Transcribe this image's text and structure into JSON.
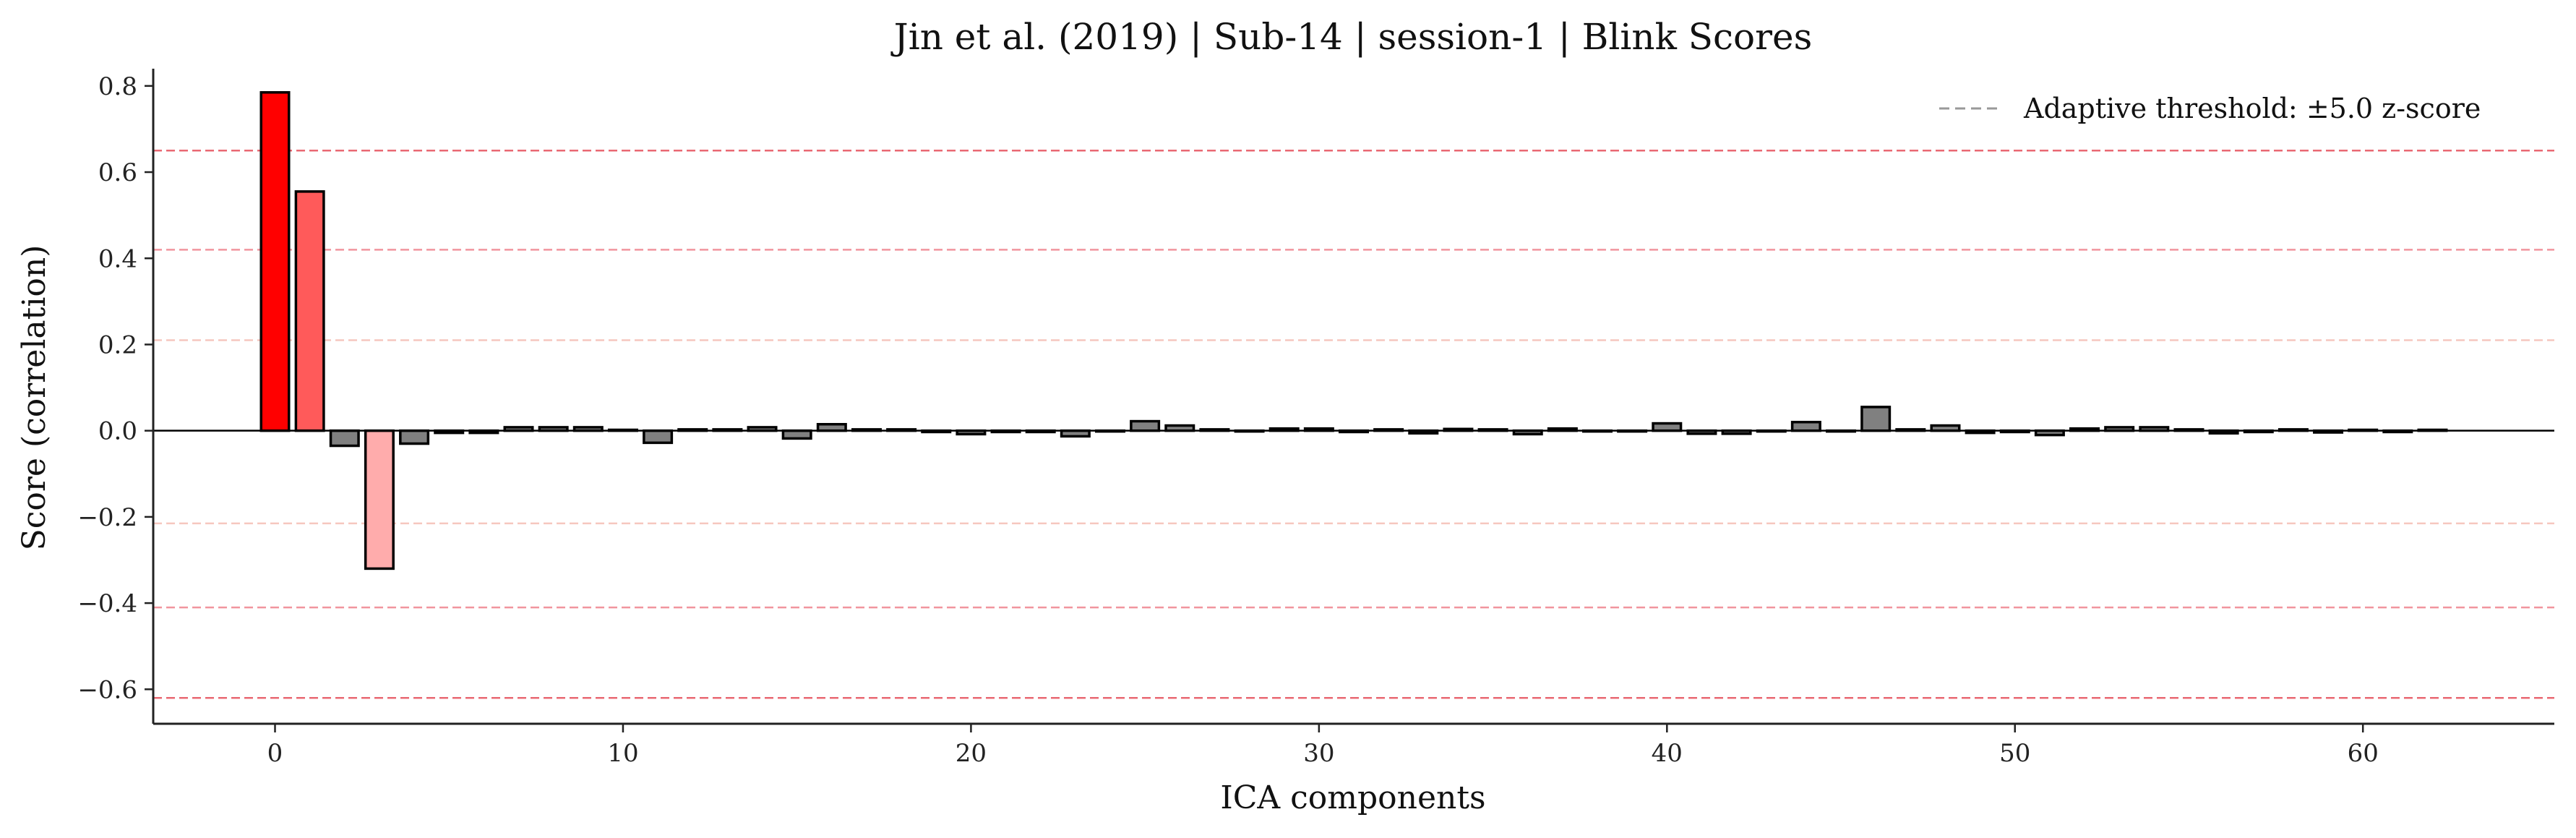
{
  "chart_data": {
    "type": "bar",
    "title": "Jin et al. (2019) | Sub-14 | session-1 | Blink Scores",
    "xlabel": "ICA components",
    "ylabel": "Score (correlation)",
    "xlim": [
      -3.5,
      65.5
    ],
    "ylim": [
      -0.68,
      0.84
    ],
    "xticks": [
      0,
      10,
      20,
      30,
      40,
      50,
      60
    ],
    "yticks": [
      -0.6,
      -0.4,
      -0.2,
      0.0,
      0.2,
      0.4,
      0.6,
      0.8
    ],
    "ytick_labels": [
      "−0.6",
      "−0.4",
      "−0.2",
      "0.0",
      "0.2",
      "0.4",
      "0.6",
      "0.8"
    ],
    "xtick_labels": [
      "0",
      "10",
      "20",
      "30",
      "40",
      "50",
      "60"
    ],
    "grid": false,
    "legend_position": "top-right",
    "legend": [
      {
        "label": "Adaptive threshold: ±5.0 z-score",
        "color": "#999999",
        "style": "dashed"
      }
    ],
    "threshold_lines": [
      {
        "y": 0.65,
        "color": "#e8616b",
        "opacity": 0.95
      },
      {
        "y": 0.42,
        "color": "#ef8a93",
        "opacity": 0.9
      },
      {
        "y": 0.21,
        "color": "#f5c1b8",
        "opacity": 0.9
      },
      {
        "y": -0.215,
        "color": "#f5c1b8",
        "opacity": 0.9
      },
      {
        "y": -0.41,
        "color": "#ef8a93",
        "opacity": 0.9
      },
      {
        "y": -0.62,
        "color": "#e8616b",
        "opacity": 0.95
      }
    ],
    "bar_colors": {
      "default": "#808080",
      "highlight": {
        "0": "#ff0000",
        "1": "#ff5a5a",
        "3": "#ffacac"
      }
    },
    "x": [
      0,
      1,
      2,
      3,
      4,
      5,
      6,
      7,
      8,
      9,
      10,
      11,
      12,
      13,
      14,
      15,
      16,
      17,
      18,
      19,
      20,
      21,
      22,
      23,
      24,
      25,
      26,
      27,
      28,
      29,
      30,
      31,
      32,
      33,
      34,
      35,
      36,
      37,
      38,
      39,
      40,
      41,
      42,
      43,
      44,
      45,
      46,
      47,
      48,
      49,
      50,
      51,
      52,
      53,
      54,
      55,
      56,
      57,
      58,
      59,
      60,
      61,
      62
    ],
    "values": [
      0.785,
      0.555,
      -0.035,
      -0.32,
      -0.03,
      -0.005,
      -0.005,
      0.008,
      0.008,
      0.008,
      0.002,
      -0.028,
      0.003,
      0.003,
      0.008,
      -0.018,
      0.015,
      0.003,
      0.003,
      -0.003,
      -0.008,
      -0.003,
      -0.003,
      -0.013,
      0.0,
      0.022,
      0.012,
      0.003,
      0.0,
      0.005,
      0.005,
      -0.003,
      0.003,
      -0.006,
      0.004,
      0.003,
      -0.008,
      0.005,
      0.0,
      0.0,
      0.017,
      -0.007,
      -0.007,
      0.0,
      0.02,
      0.0,
      0.055,
      0.003,
      0.012,
      -0.005,
      -0.003,
      -0.01,
      0.005,
      0.008,
      0.008,
      0.003,
      -0.006,
      -0.003,
      0.003,
      -0.004,
      0.002,
      -0.003,
      0.002
    ]
  }
}
